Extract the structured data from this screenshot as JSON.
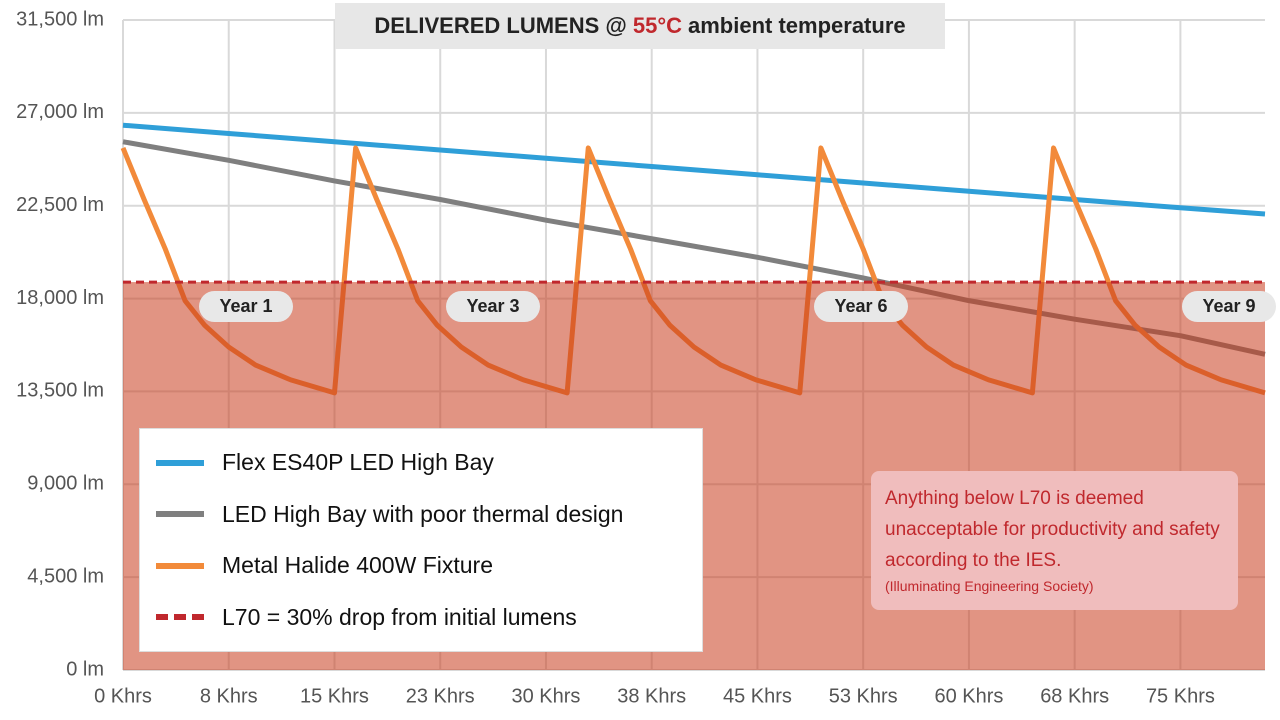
{
  "chart_data": {
    "type": "line",
    "title": {
      "before": "DELIVERED LUMENS @",
      "highlight": "55°C",
      "after": "ambient temperature"
    },
    "xlim": [
      0,
      81
    ],
    "ylim": [
      0,
      31500
    ],
    "xticks": [
      {
        "value": 0,
        "label": "0 Khrs"
      },
      {
        "value": 7.5,
        "label": "8 Khrs"
      },
      {
        "value": 15,
        "label": "15 Khrs"
      },
      {
        "value": 22.5,
        "label": "23 Khrs"
      },
      {
        "value": 30,
        "label": "30 Khrs"
      },
      {
        "value": 37.5,
        "label": "38 Khrs"
      },
      {
        "value": 45,
        "label": "45 Khrs"
      },
      {
        "value": 52.5,
        "label": "53 Khrs"
      },
      {
        "value": 60,
        "label": "60 Khrs"
      },
      {
        "value": 67.5,
        "label": "68 Khrs"
      },
      {
        "value": 75,
        "label": "75 Khrs"
      }
    ],
    "yticks": [
      {
        "value": 0,
        "label": "0 lm"
      },
      {
        "value": 4500,
        "label": "4,500 lm"
      },
      {
        "value": 9000,
        "label": "9,000 lm"
      },
      {
        "value": 13500,
        "label": "13,500 lm"
      },
      {
        "value": 18000,
        "label": "18,000 lm"
      },
      {
        "value": 22500,
        "label": "22,500 lm"
      },
      {
        "value": 27000,
        "label": "27,000 lm"
      },
      {
        "value": 31500,
        "label": "31,500 lm"
      }
    ],
    "grid": true,
    "series": [
      {
        "name": "Flex ES40P LED High Bay",
        "color": "#2f9fd8",
        "x": [
          0,
          7.5,
          15,
          22.5,
          30,
          37.5,
          45,
          52.5,
          60,
          67.5,
          75,
          81
        ],
        "values": [
          26400,
          26000,
          25600,
          25200,
          24800,
          24400,
          24000,
          23600,
          23200,
          22800,
          22400,
          22100
        ]
      },
      {
        "name": "LED High Bay with poor thermal design",
        "color": "#7f7f7f",
        "x": [
          0,
          7.5,
          15,
          22.5,
          30,
          37.5,
          45,
          52.5,
          60,
          67.5,
          75,
          81
        ],
        "values": [
          25600,
          24700,
          23700,
          22800,
          21800,
          20900,
          20000,
          19000,
          17900,
          17000,
          16200,
          15300
        ]
      },
      {
        "name": "Metal Halide 400W Fixture",
        "color": "#f28a3a",
        "x": [
          0,
          1.5,
          3,
          4.4,
          5.8,
          7.5,
          9.4,
          11.9,
          15,
          16.5,
          18,
          19.5,
          20.9,
          22.3,
          24,
          25.9,
          28.4,
          31.5,
          33,
          34.5,
          36,
          37.4,
          38.8,
          40.5,
          42.4,
          44.9,
          48,
          49.5,
          51,
          52.5,
          53.9,
          55.3,
          57,
          58.9,
          61.4,
          64.5,
          66,
          67.5,
          69,
          70.4,
          71.8,
          73.5,
          75.4,
          77.9,
          81
        ],
        "values": [
          25300,
          22800,
          20400,
          17900,
          16700,
          15650,
          14780,
          14060,
          13430,
          25300,
          22800,
          20400,
          17900,
          16700,
          15650,
          14780,
          14060,
          13430,
          25300,
          22800,
          20400,
          17900,
          16700,
          15650,
          14780,
          14060,
          13430,
          25300,
          22800,
          20400,
          17900,
          16700,
          15650,
          14780,
          14060,
          13430,
          25300,
          22800,
          20400,
          17900,
          16700,
          15650,
          14780,
          14060,
          13430
        ]
      }
    ],
    "threshold": {
      "name": "L70 = 30% drop from initial lumens",
      "value": 18800,
      "color": "#c0282d"
    },
    "annotations": [
      "Year 1",
      "Year 3",
      "Year 6",
      "Year 9"
    ],
    "note": {
      "text": "Anything below L70 is deemed unacceptable for productivity and safety according to the IES.",
      "subtext": "(Illuminating Engineering Society)"
    }
  }
}
